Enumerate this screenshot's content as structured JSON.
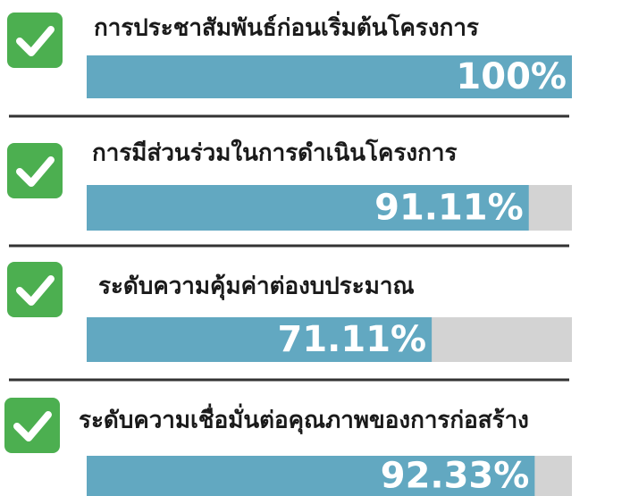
{
  "chart_data": {
    "type": "bar",
    "categories": [
      "การประชาสัมพันธ์ก่อนเริ่มต้นโครงการ",
      "การมีส่วนร่วมในการดำเนินโครงการ",
      "ระดับความคุ้มค่าต่องบประมาณ",
      "ระดับความเชื่อมั่นต่อคุณภาพของการก่อสร้าง"
    ],
    "values": [
      100,
      91.11,
      71.11,
      92.33
    ],
    "value_labels": [
      "100%",
      "91.11%",
      "71.11%",
      "92.33%"
    ],
    "color": "#62a8c1"
  }
}
